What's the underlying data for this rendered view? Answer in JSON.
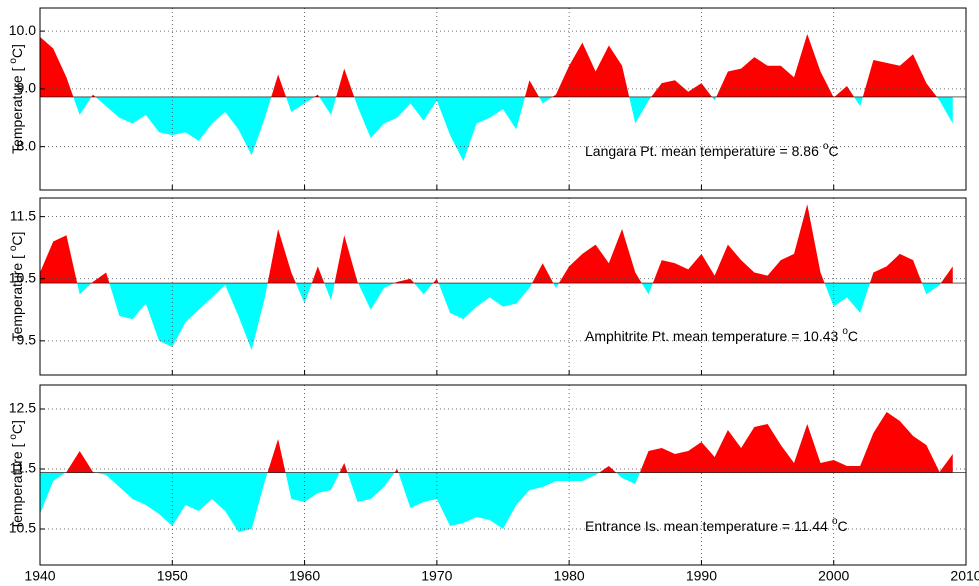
{
  "chart_data": [
    {
      "type": "anomaly-area",
      "ylabel": "Temperature [ ",
      "ylabel_sup": "o",
      "ylabel_end": "C]",
      "annotation": "Langara Pt. mean temperature = ",
      "mean": 8.86,
      "unit_sup": "o",
      "unit": "C",
      "above_color": "#ff0000",
      "below_color": "#00ffff",
      "grid": true,
      "xlim": [
        1940,
        2010
      ],
      "xticks": [
        1940,
        1950,
        1960,
        1970,
        1980,
        1990,
        2000,
        2010
      ],
      "ylim": [
        7.25,
        10.4
      ],
      "yticks": [
        {
          "value": 8,
          "label": "8.0"
        },
        {
          "value": 9,
          "label": "9.0"
        },
        {
          "value": 10,
          "label": "10.0"
        }
      ],
      "x": [
        1940,
        1941,
        1942,
        1943,
        1944,
        1945,
        1946,
        1947,
        1948,
        1949,
        1950,
        1951,
        1952,
        1953,
        1954,
        1955,
        1956,
        1957,
        1958,
        1959,
        1960,
        1961,
        1962,
        1963,
        1964,
        1965,
        1966,
        1967,
        1968,
        1969,
        1970,
        1971,
        1972,
        1973,
        1974,
        1975,
        1976,
        1977,
        1978,
        1979,
        1980,
        1981,
        1982,
        1983,
        1984,
        1985,
        1986,
        1987,
        1988,
        1989,
        1990,
        1991,
        1992,
        1993,
        1994,
        1995,
        1996,
        1997,
        1998,
        1999,
        2000,
        2001,
        2002,
        2003,
        2004,
        2005,
        2006,
        2007,
        2008,
        2009
      ],
      "values": [
        9.9,
        9.7,
        9.2,
        8.55,
        8.9,
        8.7,
        8.5,
        8.4,
        8.55,
        8.25,
        8.2,
        8.25,
        8.1,
        8.4,
        8.6,
        8.3,
        7.85,
        8.5,
        9.25,
        8.6,
        8.75,
        8.9,
        8.55,
        9.35,
        8.7,
        8.15,
        8.4,
        8.5,
        8.75,
        8.45,
        8.8,
        8.2,
        7.75,
        8.4,
        8.5,
        8.65,
        8.3,
        9.15,
        8.75,
        8.9,
        9.4,
        9.8,
        9.3,
        9.75,
        9.4,
        8.4,
        8.8,
        9.1,
        9.15,
        8.95,
        9.1,
        8.8,
        9.3,
        9.35,
        9.55,
        9.4,
        9.4,
        9.2,
        9.95,
        9.3,
        8.85,
        9.05,
        8.7,
        9.5,
        9.45,
        9.4,
        9.6,
        9.1,
        8.8,
        8.4
      ]
    },
    {
      "type": "anomaly-area",
      "ylabel": "Temperature [ ",
      "ylabel_sup": "o",
      "ylabel_end": "C]",
      "annotation": "Amphitrite Pt. mean temperature = ",
      "mean": 10.43,
      "unit_sup": "o",
      "unit": "C",
      "above_color": "#ff0000",
      "below_color": "#00ffff",
      "grid": true,
      "xlim": [
        1940,
        2010
      ],
      "xticks": [
        1940,
        1950,
        1960,
        1970,
        1980,
        1990,
        2000,
        2010
      ],
      "ylim": [
        8.95,
        11.8
      ],
      "yticks": [
        9.5,
        10.5,
        11.5
      ],
      "x": [
        1940,
        1941,
        1942,
        1943,
        1944,
        1945,
        1946,
        1947,
        1948,
        1949,
        1950,
        1951,
        1952,
        1953,
        1954,
        1955,
        1956,
        1957,
        1958,
        1959,
        1960,
        1961,
        1962,
        1963,
        1964,
        1965,
        1966,
        1967,
        1968,
        1969,
        1970,
        1971,
        1972,
        1973,
        1974,
        1975,
        1976,
        1977,
        1978,
        1979,
        1980,
        1981,
        1982,
        1983,
        1984,
        1985,
        1986,
        1987,
        1988,
        1989,
        1990,
        1991,
        1992,
        1993,
        1994,
        1995,
        1996,
        1997,
        1998,
        1999,
        2000,
        2001,
        2002,
        2003,
        2004,
        2005,
        2006,
        2007,
        2008,
        2009
      ],
      "values": [
        10.6,
        11.1,
        11.2,
        10.25,
        10.45,
        10.6,
        9.9,
        9.85,
        10.1,
        9.5,
        9.4,
        9.8,
        10.0,
        10.2,
        10.4,
        9.9,
        9.35,
        10.2,
        11.3,
        10.6,
        10.1,
        10.7,
        10.15,
        11.2,
        10.45,
        10.0,
        10.35,
        10.45,
        10.5,
        10.25,
        10.5,
        9.95,
        9.85,
        10.05,
        10.2,
        10.05,
        10.1,
        10.35,
        10.75,
        10.35,
        10.7,
        10.9,
        11.05,
        10.75,
        11.3,
        10.6,
        10.25,
        10.8,
        10.75,
        10.65,
        10.9,
        10.55,
        11.05,
        10.8,
        10.6,
        10.55,
        10.8,
        10.9,
        11.7,
        10.6,
        10.05,
        10.2,
        9.95,
        10.6,
        10.7,
        10.9,
        10.8,
        10.25,
        10.4,
        10.7
      ]
    },
    {
      "type": "anomaly-area",
      "ylabel": "Temperature [ ",
      "ylabel_sup": "o",
      "ylabel_end": "C]",
      "annotation": "Entrance Is. mean temperature = ",
      "mean": 11.44,
      "unit_sup": "o",
      "unit": "C",
      "above_color": "#ff0000",
      "below_color": "#00ffff",
      "grid": true,
      "xlim": [
        1940,
        2010
      ],
      "xticks": [
        1940,
        1950,
        1960,
        1970,
        1980,
        1990,
        2000,
        2010
      ],
      "ylim": [
        9.9,
        12.9
      ],
      "yticks": [
        10.5,
        11.5,
        12.5
      ],
      "x": [
        1940,
        1941,
        1942,
        1943,
        1944,
        1945,
        1946,
        1947,
        1948,
        1949,
        1950,
        1951,
        1952,
        1953,
        1954,
        1955,
        1956,
        1957,
        1958,
        1959,
        1960,
        1961,
        1962,
        1963,
        1964,
        1965,
        1966,
        1967,
        1968,
        1969,
        1970,
        1971,
        1972,
        1973,
        1974,
        1975,
        1976,
        1977,
        1978,
        1979,
        1980,
        1981,
        1982,
        1983,
        1984,
        1985,
        1986,
        1987,
        1988,
        1989,
        1990,
        1991,
        1992,
        1993,
        1994,
        1995,
        1996,
        1997,
        1998,
        1999,
        2000,
        2001,
        2002,
        2003,
        2004,
        2005,
        2006,
        2007,
        2008,
        2009
      ],
      "values": [
        10.75,
        11.3,
        11.45,
        11.8,
        11.45,
        11.4,
        11.2,
        11.0,
        10.9,
        10.75,
        10.55,
        10.9,
        10.8,
        11.0,
        10.8,
        10.45,
        10.5,
        11.3,
        12.0,
        11.0,
        10.95,
        11.1,
        11.15,
        11.6,
        10.95,
        11.0,
        11.2,
        11.5,
        10.85,
        10.95,
        11.0,
        10.55,
        10.6,
        10.7,
        10.65,
        10.5,
        10.9,
        11.15,
        11.2,
        11.3,
        11.3,
        11.3,
        11.4,
        11.55,
        11.35,
        11.25,
        11.8,
        11.85,
        11.75,
        11.8,
        11.95,
        11.7,
        12.15,
        11.85,
        12.2,
        12.25,
        11.9,
        11.6,
        12.25,
        11.6,
        11.65,
        11.55,
        11.55,
        12.1,
        12.45,
        12.3,
        12.05,
        11.9,
        11.45,
        11.75
      ]
    }
  ]
}
